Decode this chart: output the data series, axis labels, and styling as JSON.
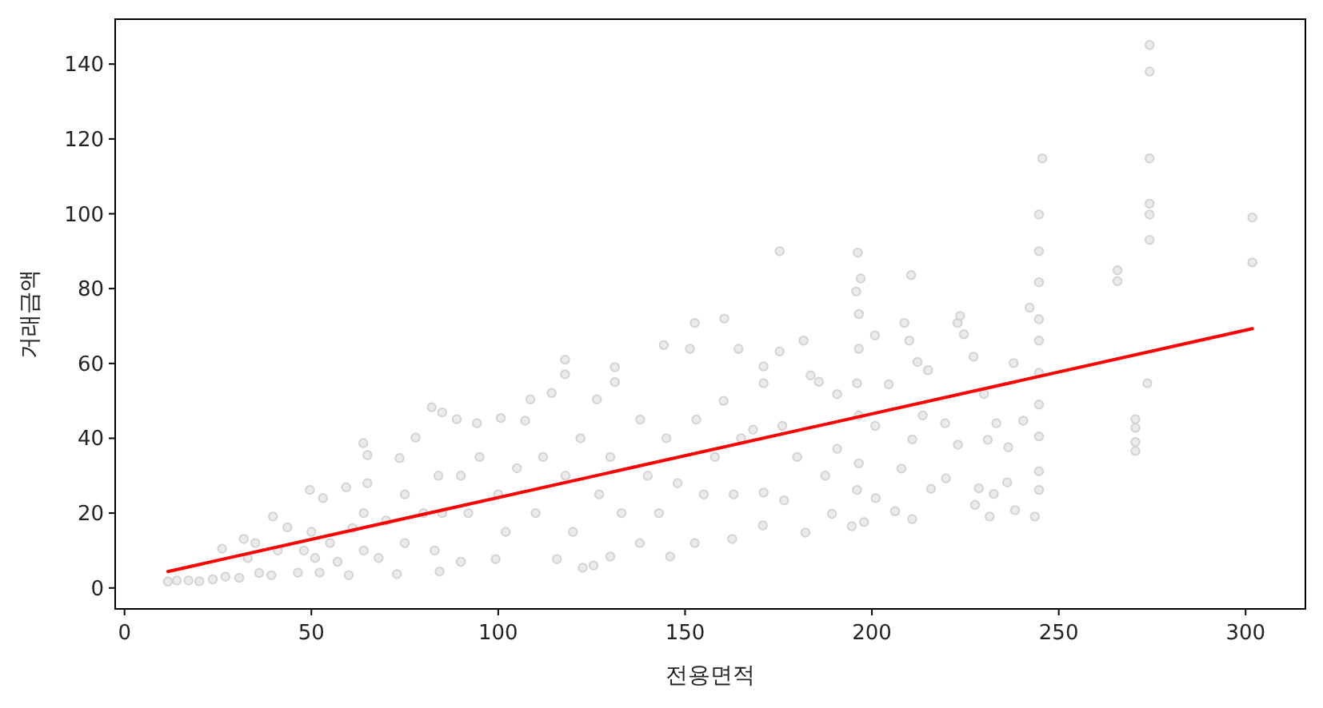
{
  "chart_data": {
    "type": "scatter",
    "xlabel": "전용면적",
    "ylabel": "거래금액",
    "xlim": [
      -2.5,
      316
    ],
    "ylim": [
      -5.6,
      152
    ],
    "xticks": [
      0,
      50,
      100,
      150,
      200,
      250,
      300
    ],
    "yticks": [
      0,
      20,
      40,
      60,
      80,
      100,
      120,
      140
    ],
    "marker": "circle",
    "series": [
      {
        "color": "#d3d3d3",
        "x": [
          11.6,
          14,
          17.1,
          20,
          23.6,
          26.1,
          27,
          30.7,
          31.9,
          33,
          35,
          36,
          39.3,
          39.7,
          41,
          43.6,
          46.4,
          48,
          49.6,
          50,
          51,
          52.2,
          53.1,
          55,
          57,
          59.3,
          60,
          61,
          63.9,
          64,
          64,
          65,
          65,
          68,
          70,
          72.9,
          73.6,
          75,
          75,
          77.9,
          80,
          82.2,
          83,
          84.3,
          84,
          85,
          85,
          88.9,
          90,
          90,
          92,
          94.3,
          95,
          99.3,
          100.7,
          100,
          102,
          105,
          107.2,
          108.6,
          110,
          112,
          114.3,
          115.7,
          117.9,
          117.9,
          118,
          120,
          122.6,
          122,
          125.5,
          126.4,
          127,
          130,
          130,
          131.2,
          131.2,
          133,
          137.9,
          138,
          140,
          143,
          144.3,
          145,
          146,
          148,
          151.3,
          152.6,
          152.6,
          153,
          155,
          158,
          160.5,
          160.3,
          162.6,
          163,
          164.3,
          165,
          168.2,
          170.8,
          171,
          171,
          171,
          175.3,
          175.3,
          176,
          176.5,
          180,
          181.7,
          182.2,
          183.6,
          185.8,
          187.5,
          189.3,
          190.7,
          190.7,
          194.6,
          196.2,
          197,
          195.8,
          196.5,
          196.5,
          196,
          196.5,
          196.5,
          196,
          197.9,
          200.8,
          200.9,
          201,
          204.5,
          206.2,
          207.9,
          208.7,
          210.5,
          210,
          210.8,
          210.8,
          212.2,
          213.6,
          215,
          215.8,
          219.6,
          219.8,
          222.9,
          223.6,
          223,
          224.6,
          227.2,
          227.6,
          228.6,
          230,
          231,
          231.5,
          232.6,
          233.3,
          236.2,
          236.5,
          237.9,
          238.3,
          240.5,
          242.2,
          243.6,
          244.7,
          244.7,
          244.7,
          244.7,
          244.7,
          244.7,
          244.7,
          244.7,
          244.7,
          244.7,
          245.6,
          265.7,
          265.7,
          270.5,
          270.5,
          270.5,
          270.5,
          273.7,
          274.3,
          274.3,
          274.3,
          274.3,
          274.3,
          274.3,
          301.8,
          301.8
        ],
        "values": [
          1.7,
          2.0,
          2.0,
          1.8,
          2.3,
          10.5,
          3.0,
          2.7,
          13.1,
          8,
          12,
          4,
          3.4,
          19.1,
          10,
          16.2,
          4.1,
          10,
          26.2,
          15,
          8,
          4.1,
          24,
          12,
          7,
          26.9,
          3.4,
          16,
          38.7,
          10,
          20,
          35.5,
          28,
          8,
          18,
          3.7,
          34.7,
          25,
          12,
          40.2,
          20,
          48.3,
          10,
          4.4,
          30,
          46.9,
          20,
          45.1,
          7,
          30,
          20,
          44,
          35,
          7.7,
          45.4,
          25,
          15,
          32,
          44.7,
          50.4,
          20,
          35,
          52.1,
          7.7,
          61,
          57.1,
          30,
          15,
          5.4,
          40,
          6,
          50.4,
          25,
          8.4,
          35,
          59,
          55,
          20,
          12,
          45,
          30,
          20,
          64.9,
          40,
          8.4,
          28,
          63.9,
          70.8,
          12,
          45,
          25,
          35,
          72,
          50,
          13.1,
          25,
          63.9,
          40,
          42.3,
          16.7,
          59.2,
          54.7,
          25.5,
          90,
          63.2,
          43.3,
          23.4,
          35,
          66.1,
          14.8,
          56.8,
          55.1,
          30,
          19.8,
          51.8,
          37.2,
          16.5,
          89.6,
          82.7,
          79.2,
          73.2,
          63.9,
          54.7,
          46.1,
          33.3,
          26.2,
          17.6,
          67.5,
          43.3,
          24,
          54.4,
          20.5,
          31.9,
          70.8,
          83.6,
          66.1,
          39.7,
          18.4,
          60.4,
          46.1,
          58.2,
          26.5,
          44,
          29.3,
          70.8,
          72.7,
          38.3,
          67.8,
          61.8,
          22.2,
          26.6,
          51.8,
          39.6,
          19.1,
          25.1,
          44,
          28.2,
          37.6,
          60.1,
          20.8,
          44.7,
          74.9,
          19.1,
          99.8,
          90,
          81.7,
          71.8,
          66.1,
          57.5,
          49,
          40.5,
          31.2,
          26.2,
          114.8,
          84.9,
          82,
          45.1,
          42.8,
          39,
          36.6,
          54.7,
          145.1,
          138,
          114.8,
          102.7,
          99.8,
          93,
          99,
          87
        ]
      },
      {
        "type": "line",
        "color": "#ff0000",
        "marker": "none",
        "x": [
          11.6,
          301.8
        ],
        "values": [
          4.4,
          69.3
        ]
      }
    ]
  }
}
